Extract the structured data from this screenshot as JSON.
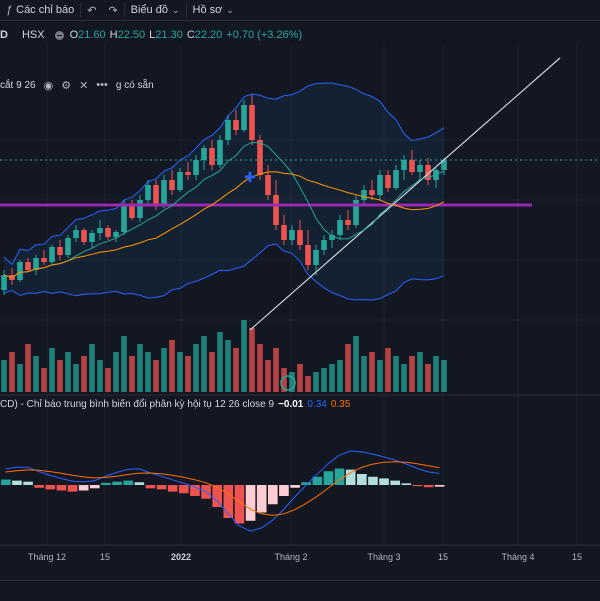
{
  "toolbar": {
    "indicators_label": "Các chỉ báo",
    "chart_label": "Biểu đồ",
    "profile_label": "Hồ sơ"
  },
  "legend": {
    "symbol": "D",
    "exchange": "HSX",
    "o_label": "O",
    "o_value": "21.60",
    "h_label": "H",
    "h_value": "22.50",
    "l_label": "L",
    "l_value": "21.30",
    "c_label": "C",
    "c_value": "22.20",
    "change": "+0.70 (+3.26%)"
  },
  "indicator_legend": {
    "name": "cắt 9 26",
    "extra": "g có sẵn"
  },
  "macd_legend": {
    "name": "CD) - Chỉ báo trung bình biến đổi phân kỳ hội tụ 12 26 close 9",
    "v1": "−0.01",
    "v2": "0.34",
    "v3": "0.35"
  },
  "time_axis": [
    {
      "label": "Tháng 12",
      "bold": false
    },
    {
      "label": "15",
      "bold": false
    },
    {
      "label": "2022",
      "bold": true
    },
    {
      "label": "Tháng 2",
      "bold": false
    },
    {
      "label": "Tháng 3",
      "bold": false
    },
    {
      "label": "15",
      "bold": false
    },
    {
      "label": "Tháng 4",
      "bold": false
    },
    {
      "label": "15",
      "bold": false
    }
  ],
  "colors": {
    "up": "#26a69a",
    "down": "#ef5350",
    "bb_line": "#2962ff",
    "ma_fast": "#26a69a",
    "ma_slow": "#ff9800",
    "support": "#9c27b0",
    "macd": "#2962ff",
    "signal": "#ff6d00",
    "hist_up_strong": "#26a69a",
    "hist_up_weak": "#b2dfdb",
    "hist_down_strong": "#ef5350",
    "hist_down_weak": "#ffcdd2"
  },
  "chart_data": {
    "type": "candlestick",
    "series": [
      {
        "name": "price",
        "ohlc": [
          [
            0.4,
            0.6,
            0.35,
            0.55
          ],
          [
            0.55,
            0.62,
            0.45,
            0.5
          ],
          [
            0.5,
            0.7,
            0.48,
            0.68
          ],
          [
            0.68,
            0.72,
            0.58,
            0.6
          ],
          [
            0.6,
            0.75,
            0.55,
            0.72
          ],
          [
            0.72,
            0.8,
            0.65,
            0.68
          ],
          [
            0.68,
            0.85,
            0.66,
            0.83
          ],
          [
            0.83,
            0.9,
            0.7,
            0.75
          ],
          [
            0.75,
            0.95,
            0.72,
            0.92
          ],
          [
            0.92,
            1.05,
            0.88,
            1.0
          ],
          [
            1.0,
            1.02,
            0.85,
            0.88
          ],
          [
            0.88,
            1.0,
            0.82,
            0.97
          ],
          [
            0.97,
            1.1,
            0.9,
            1.02
          ],
          [
            1.02,
            1.05,
            0.9,
            0.93
          ],
          [
            0.93,
            1.0,
            0.88,
            0.98
          ],
          [
            0.98,
            1.3,
            0.95,
            1.25
          ],
          [
            1.25,
            1.3,
            1.1,
            1.12
          ],
          [
            1.12,
            1.35,
            1.08,
            1.3
          ],
          [
            1.3,
            1.5,
            1.25,
            1.45
          ],
          [
            1.45,
            1.5,
            1.2,
            1.25
          ],
          [
            1.25,
            1.55,
            1.22,
            1.5
          ],
          [
            1.5,
            1.6,
            1.35,
            1.4
          ],
          [
            1.4,
            1.62,
            1.38,
            1.58
          ],
          [
            1.58,
            1.68,
            1.5,
            1.55
          ],
          [
            1.55,
            1.75,
            1.5,
            1.7
          ],
          [
            1.7,
            1.85,
            1.6,
            1.82
          ],
          [
            1.82,
            1.9,
            1.6,
            1.65
          ],
          [
            1.65,
            1.95,
            1.62,
            1.9
          ],
          [
            1.9,
            2.15,
            1.85,
            2.1
          ],
          [
            2.1,
            2.2,
            1.95,
            2.0
          ],
          [
            2.0,
            2.3,
            1.98,
            2.25
          ],
          [
            2.25,
            2.35,
            1.85,
            1.9
          ],
          [
            1.9,
            1.95,
            1.5,
            1.55
          ],
          [
            1.55,
            1.65,
            1.3,
            1.35
          ],
          [
            1.35,
            1.5,
            1.0,
            1.05
          ],
          [
            1.05,
            1.15,
            0.85,
            0.9
          ],
          [
            0.9,
            1.05,
            0.85,
            1.0
          ],
          [
            1.0,
            1.1,
            0.8,
            0.85
          ],
          [
            0.85,
            1.0,
            0.6,
            0.65
          ],
          [
            0.65,
            0.85,
            0.55,
            0.8
          ],
          [
            0.8,
            0.95,
            0.75,
            0.9
          ],
          [
            0.9,
            1.0,
            0.82,
            0.95
          ],
          [
            0.95,
            1.15,
            0.9,
            1.1
          ],
          [
            1.1,
            1.2,
            1.0,
            1.05
          ],
          [
            1.05,
            1.35,
            1.02,
            1.3
          ],
          [
            1.3,
            1.45,
            1.25,
            1.4
          ],
          [
            1.4,
            1.5,
            1.3,
            1.35
          ],
          [
            1.35,
            1.6,
            1.3,
            1.55
          ],
          [
            1.55,
            1.6,
            1.38,
            1.42
          ],
          [
            1.42,
            1.65,
            1.4,
            1.6
          ],
          [
            1.6,
            1.75,
            1.5,
            1.7
          ],
          [
            1.7,
            1.8,
            1.55,
            1.58
          ],
          [
            1.58,
            1.7,
            1.5,
            1.65
          ],
          [
            1.65,
            1.72,
            1.45,
            1.5
          ],
          [
            1.5,
            1.62,
            1.42,
            1.6
          ],
          [
            1.6,
            1.72,
            1.55,
            1.7
          ]
        ]
      }
    ],
    "volume": [
      0.4,
      0.5,
      0.35,
      0.6,
      0.45,
      0.3,
      0.55,
      0.4,
      0.5,
      0.35,
      0.45,
      0.6,
      0.4,
      0.3,
      0.5,
      0.7,
      0.45,
      0.6,
      0.5,
      0.4,
      0.55,
      0.65,
      0.5,
      0.45,
      0.6,
      0.7,
      0.5,
      0.75,
      0.65,
      0.55,
      0.9,
      0.8,
      0.6,
      0.4,
      0.55,
      0.3,
      0.25,
      0.35,
      0.2,
      0.25,
      0.3,
      0.35,
      0.4,
      0.6,
      0.7,
      0.45,
      0.5,
      0.4,
      0.55,
      0.45,
      0.35,
      0.45,
      0.5,
      0.35,
      0.45,
      0.4
    ],
    "macd_hist": [
      0.1,
      0.08,
      0.06,
      -0.05,
      -0.08,
      -0.1,
      -0.12,
      -0.1,
      -0.06,
      0.04,
      0.06,
      0.08,
      0.05,
      -0.06,
      -0.08,
      -0.12,
      -0.15,
      -0.2,
      -0.25,
      -0.4,
      -0.6,
      -0.7,
      -0.65,
      -0.5,
      -0.35,
      -0.2,
      -0.05,
      0.05,
      0.15,
      0.25,
      0.3,
      0.28,
      0.2,
      0.15,
      0.12,
      0.08,
      0.03,
      -0.02,
      -0.04,
      -0.03
    ]
  }
}
